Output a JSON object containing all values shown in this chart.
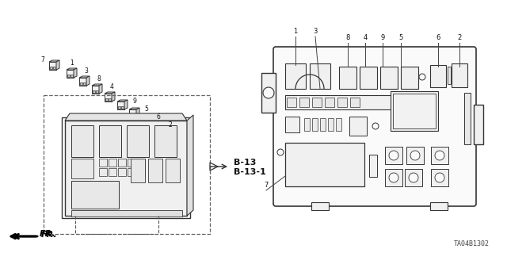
{
  "bg_color": "#ffffff",
  "fig_width": 6.4,
  "fig_height": 3.19,
  "dpi": 100,
  "part_label": "TA04B1302",
  "ref_label": "FR.",
  "b13_label": "B-13",
  "b13_1_label": "B-13-1",
  "lc": "#333333",
  "lw": 0.8
}
